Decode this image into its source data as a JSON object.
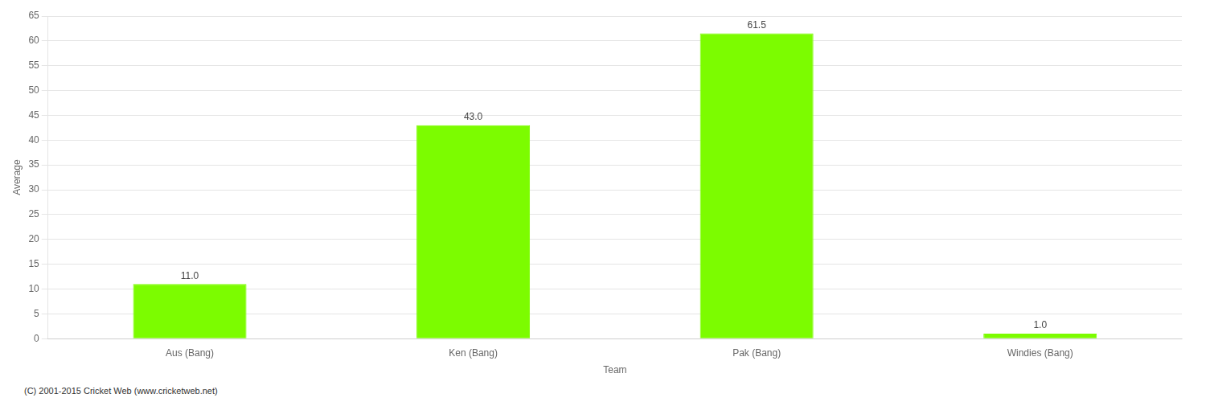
{
  "chart_data": {
    "type": "bar",
    "xlabel": "Team",
    "ylabel": "Average",
    "categories": [
      "Aus (Bang)",
      "Ken (Bang)",
      "Pak (Bang)",
      "Windies (Bang)"
    ],
    "values": [
      11.0,
      43.0,
      61.5,
      1.0
    ],
    "value_labels": [
      "11.0",
      "43.0",
      "61.5",
      "1.0"
    ],
    "data_labels": true,
    "color": "#7CFC00",
    "ylim": [
      0,
      65
    ],
    "yticks": [
      0,
      5,
      10,
      15,
      20,
      25,
      30,
      35,
      40,
      45,
      50,
      55,
      60,
      65
    ],
    "grid": true,
    "annotations": [
      "(C) 2001-2015 Cricket Web (www.cricketweb.net)"
    ]
  }
}
